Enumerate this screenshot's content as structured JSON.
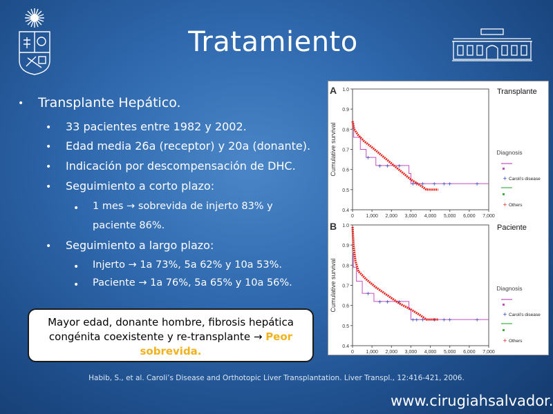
{
  "title": "Tratamiento",
  "bullets": {
    "l1": "Transplante Hepático.",
    "items": [
      "33 pacientes entre 1982 y 2002.",
      "Edad media 26a (receptor) y 20a (donante).",
      "Indicación por descompensación de DHC.",
      "Seguimiento a corto plazo:"
    ],
    "short_term": {
      "line1_pre": "1 mes",
      "line1_post": "sobrevida de injerto 83% y",
      "line2": "paciente 86%."
    },
    "long_term_label": "Seguimiento a largo plazo:",
    "long_term": [
      {
        "pre": "Injerto",
        "post": "1a 73%, 5a 62% y 10a 53%."
      },
      {
        "pre": "Paciente",
        "post": "1a 76%, 5a 65% y 10a 56%."
      }
    ],
    "arrow": "→",
    "bullet_char": "•"
  },
  "callout": {
    "line1": "Mayor edad, donante hombre, fibrosis hepática",
    "line2_pre": "congénita coexistente y re-transplante",
    "highlight": "Peor sobrevida."
  },
  "citation": "Habib, S., et al. Caroli’s Disease and Orthotopic Liver Transplantation. Liver Transpl., 12:416-421, 2006.",
  "website": "www.cirugiahsalvador.cl",
  "colors": {
    "background": "#2f68ad",
    "highlight": "#f2b21e",
    "series_carolis": "#1f3fbf",
    "series_others": "#e8261e",
    "series_diagnosis": "#c24dbf"
  },
  "chart_data": [
    {
      "type": "line",
      "panel_letter": "A",
      "corner_label": "Transplante",
      "ylabel": "Cumulative survival",
      "xticks": [
        "0",
        "1,000",
        "2,000",
        "3,000",
        "4,000",
        "5,000",
        "6,000",
        "7,000"
      ],
      "yticks": [
        "0.4",
        "0.5",
        "0.6",
        "0.7",
        "0.8",
        "0.9",
        "1.0"
      ],
      "xlim": [
        0,
        7000
      ],
      "ylim": [
        0.4,
        1.0
      ],
      "legend": {
        "title": "Diagnosis",
        "entries": [
          "Caroli's disease",
          "Others"
        ]
      },
      "series": [
        {
          "name": "Caroli's disease",
          "step": true,
          "values": [
            [
              0,
              0.83
            ],
            [
              60,
              0.76
            ],
            [
              400,
              0.7
            ],
            [
              700,
              0.66
            ],
            [
              1200,
              0.62
            ],
            [
              2000,
              0.62
            ],
            [
              2900,
              0.58
            ],
            [
              3000,
              0.53
            ],
            [
              7000,
              0.53
            ]
          ]
        },
        {
          "name": "Others",
          "step": false,
          "values": [
            [
              0,
              0.84
            ],
            [
              80,
              0.8
            ],
            [
              300,
              0.77
            ],
            [
              600,
              0.74
            ],
            [
              1000,
              0.71
            ],
            [
              1500,
              0.67
            ],
            [
              2000,
              0.63
            ],
            [
              2500,
              0.59
            ],
            [
              3000,
              0.55
            ],
            [
              3500,
              0.52
            ],
            [
              3800,
              0.5
            ],
            [
              4400,
              0.5
            ]
          ]
        }
      ]
    },
    {
      "type": "line",
      "panel_letter": "B",
      "corner_label": "Paciente",
      "ylabel": "Cumulative survival",
      "xticks": [
        "0",
        "1,000",
        "2,000",
        "3,000",
        "4,000",
        "5,000",
        "6,000",
        "7,000"
      ],
      "yticks": [
        "0.4",
        "0.5",
        "0.6",
        "0.7",
        "0.8",
        "0.9",
        "1.0"
      ],
      "xlim": [
        0,
        7000
      ],
      "ylim": [
        0.4,
        1.0
      ],
      "legend": {
        "title": "Diagnosis",
        "entries": [
          "Caroli's disease",
          "Others"
        ]
      },
      "series": [
        {
          "name": "Caroli's disease",
          "step": true,
          "values": [
            [
              0,
              0.86
            ],
            [
              40,
              0.79
            ],
            [
              200,
              0.72
            ],
            [
              500,
              0.66
            ],
            [
              1100,
              0.62
            ],
            [
              2000,
              0.62
            ],
            [
              2900,
              0.58
            ],
            [
              3000,
              0.53
            ],
            [
              7000,
              0.53
            ]
          ]
        },
        {
          "name": "Others",
          "step": false,
          "values": [
            [
              0,
              0.99
            ],
            [
              50,
              0.9
            ],
            [
              150,
              0.82
            ],
            [
              300,
              0.77
            ],
            [
              700,
              0.73
            ],
            [
              1200,
              0.69
            ],
            [
              1800,
              0.65
            ],
            [
              2400,
              0.61
            ],
            [
              3000,
              0.58
            ],
            [
              3500,
              0.55
            ],
            [
              3800,
              0.53
            ],
            [
              4400,
              0.53
            ]
          ]
        }
      ]
    }
  ]
}
